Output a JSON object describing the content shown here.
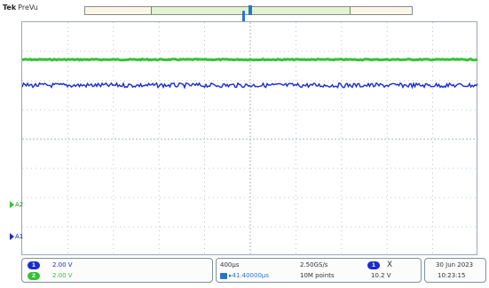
{
  "header": {
    "brand": "Tek",
    "mode": "PreVu"
  },
  "colors": {
    "channel1": "#1a2bd0",
    "channel2": "#34c234",
    "trigger": "#2a75c9",
    "grid": "#a9b4be"
  },
  "waveforms": {
    "channel2_level_fraction": 0.16,
    "channel1_level_fraction": 0.27
  },
  "markers": {
    "a2": "A2",
    "a1": "A1",
    "trigger": "U"
  },
  "vertical": {
    "ch1": {
      "badge": "1",
      "scale": "2.00 V"
    },
    "ch2": {
      "badge": "2",
      "scale": "2.00 V"
    }
  },
  "horizontal": {
    "timebase": "400µs",
    "sample_rate": "2.50GS/s",
    "trigger_badge": "1",
    "trigger_coupling": "X",
    "delay": "41.40000µs",
    "record_length": "10M points",
    "trigger_level": "10.2 V"
  },
  "datetime": {
    "date": "30 Jun  2023",
    "time": "10:23:15"
  }
}
